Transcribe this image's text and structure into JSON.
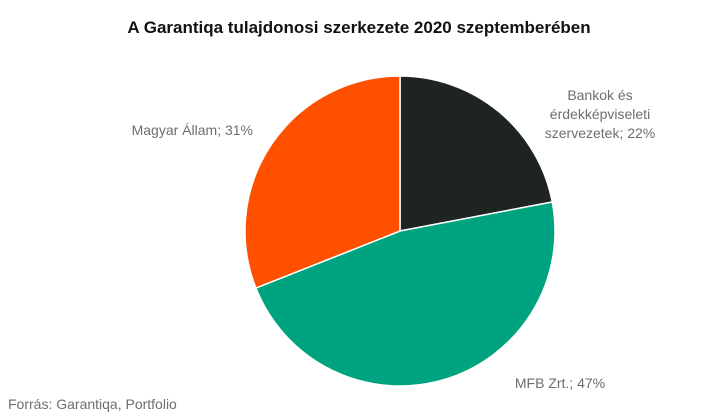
{
  "chart_data": {
    "type": "pie",
    "title": "A Garantiqa tulajdonosi szerkezete 2020 szeptemberében",
    "values": [
      22,
      47,
      31
    ],
    "value_labels": [
      "Bankok és érdekképviseleti szervezetek; 22%",
      "MFB Zrt.; 47%",
      "Magyar Állam; 31%"
    ],
    "colors": [
      "#1e2421",
      "#00a37f",
      "#ff5000"
    ],
    "source": "Forrás: Garantiqa, Portfolio"
  }
}
